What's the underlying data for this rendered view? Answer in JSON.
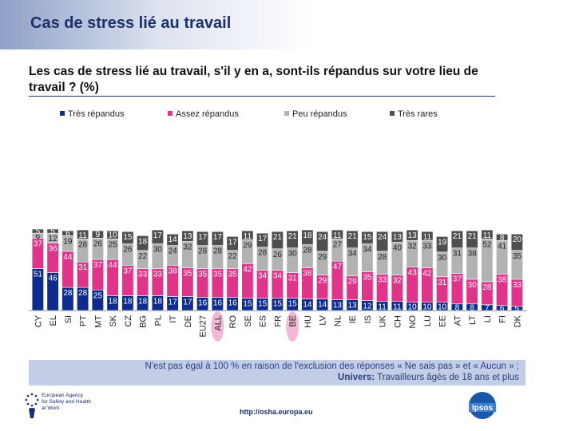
{
  "header": {
    "title": "Cas de stress lié au travail"
  },
  "question": "Les cas de stress lié au travail, s'il y en a, sont-ils répandus sur votre lieu de travail ?  (%)",
  "colors": {
    "tres_repandus": "#0e2c8e",
    "assez_repandus": "#e0348a",
    "peu_repandus": "#b2b2b2",
    "tres_rares": "#4f4f4f",
    "highlight": "#f2b8d6"
  },
  "chart_data": {
    "type": "bar",
    "stacked": true,
    "categories": [
      "CY",
      "EL",
      "SI",
      "PT",
      "MT",
      "SK",
      "CZ",
      "BG",
      "PL",
      "IT",
      "DE",
      "EU27",
      "ALL",
      "RO",
      "SE",
      "ES",
      "FR",
      "BE",
      "HU",
      "LV",
      "NL",
      "IE",
      "IS",
      "UK",
      "CH",
      "NO",
      "LU",
      "EE",
      "AT",
      "LT",
      "LI",
      "FI",
      "DK"
    ],
    "highlighted_categories": [
      "ALL",
      "BE"
    ],
    "series": [
      {
        "name": "Très répandus",
        "values": [
          51,
          46,
          28,
          28,
          25,
          18,
          18,
          18,
          18,
          17,
          17,
          16,
          16,
          16,
          15,
          15,
          15,
          15,
          14,
          14,
          13,
          13,
          12,
          11,
          11,
          10,
          10,
          10,
          8,
          8,
          7,
          6,
          5
        ]
      },
      {
        "name": "Assez répandus",
        "values": [
          37,
          36,
          44,
          31,
          37,
          44,
          37,
          33,
          33,
          38,
          35,
          35,
          35,
          35,
          42,
          34,
          34,
          31,
          38,
          29,
          47,
          29,
          35,
          33,
          32,
          43,
          42,
          31,
          37,
          30,
          28,
          38,
          33
        ]
      },
      {
        "name": "Peu répandus",
        "values": [
          6,
          12,
          19,
          28,
          26,
          25,
          26,
          22,
          30,
          24,
          32,
          28,
          28,
          22,
          29,
          28,
          26,
          30,
          28,
          29,
          27,
          34,
          34,
          28,
          40,
          32,
          33,
          30,
          31,
          38,
          52,
          41,
          35
        ]
      },
      {
        "name": "Très rares",
        "values": [
          5,
          5,
          6,
          11,
          9,
          10,
          15,
          18,
          17,
          14,
          13,
          17,
          17,
          17,
          11,
          17,
          21,
          21,
          18,
          24,
          11,
          21,
          15,
          24,
          13,
          13,
          11,
          19,
          21,
          21,
          11,
          8,
          20
        ]
      }
    ],
    "ylim": [
      0,
      100
    ]
  },
  "notes": {
    "line1": "N'est pas égal à 100 % en raison de l'exclusion des réponses «  Ne sais pas » et « Aucun » ;",
    "universe_label": "Univers:",
    "universe_text": " Travailleurs âgés de 18 ans et plus"
  },
  "footer": {
    "osha_line1": "European Agency",
    "osha_line2": "for Safety and Health",
    "osha_line3": "at Work",
    "url": "http://osha.europa.eu",
    "ipsos": "Ipsos"
  }
}
